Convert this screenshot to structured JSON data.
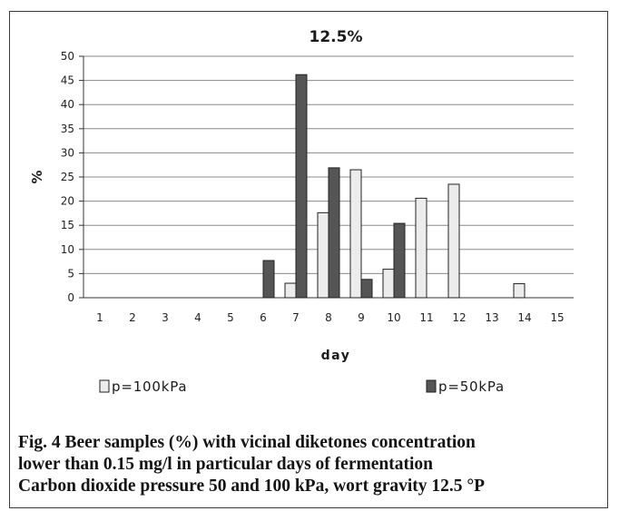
{
  "chart_data": {
    "type": "bar",
    "title": "12.5%",
    "xlabel": "day",
    "ylabel": "%",
    "ylim": [
      0,
      50
    ],
    "yticks": [
      0,
      5,
      10,
      15,
      20,
      25,
      30,
      35,
      40,
      45,
      50
    ],
    "grid": true,
    "legend_position": "bottom",
    "categories": [
      "1",
      "2",
      "3",
      "4",
      "5",
      "6",
      "7",
      "8",
      "9",
      "10",
      "11",
      "12",
      "13",
      "14",
      "15"
    ],
    "series": [
      {
        "name": "p=100kPa",
        "color": "#ececec",
        "values": [
          0,
          0,
          0,
          0,
          0,
          0,
          3,
          17.6,
          26.5,
          5.9,
          20.6,
          23.5,
          0,
          2.9,
          0
        ]
      },
      {
        "name": "p=50kPa",
        "color": "#555555",
        "values": [
          0,
          0,
          0,
          0,
          0,
          7.7,
          46.2,
          26.9,
          3.8,
          15.4,
          0,
          0,
          0,
          0,
          0
        ]
      }
    ]
  },
  "caption": {
    "line1": "Fig. 4  Beer samples (%) with vicinal diketones concentration",
    "line2": "lower than 0.15 mg/l in particular days of fermentation",
    "line3": "Carbon dioxide pressure 50 and 100 kPa, wort gravity 12.5 °P"
  }
}
